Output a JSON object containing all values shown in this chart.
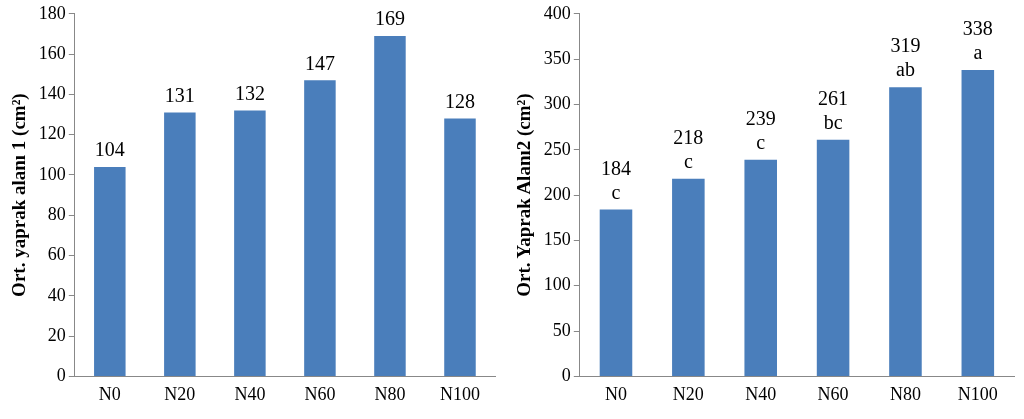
{
  "chart_data": [
    {
      "type": "bar",
      "ylabel": "Ort. yaprak alanı 1 (cm²)",
      "categories": [
        "N0",
        "N20",
        "N40",
        "N60",
        "N80",
        "N100"
      ],
      "values": [
        104,
        131,
        132,
        147,
        169,
        128
      ],
      "color": "#4a7ebb",
      "ylim": [
        0,
        180
      ],
      "yticks": [
        0,
        20,
        40,
        60,
        80,
        100,
        120,
        140,
        160,
        180
      ],
      "grid": false,
      "legend": false,
      "data_labels": true
    },
    {
      "type": "bar",
      "ylabel": "Ort. Yaprak Alanı2 (cm²)",
      "categories": [
        "N0",
        "N20",
        "N40",
        "N60",
        "N80",
        "N100"
      ],
      "values": [
        184,
        218,
        239,
        261,
        319,
        338
      ],
      "color": "#4a7ebb",
      "ylim": [
        0,
        400
      ],
      "yticks": [
        0,
        50,
        100,
        150,
        200,
        250,
        300,
        350,
        400
      ],
      "grid": false,
      "legend": false,
      "data_labels": true,
      "annotations": [
        {
          "text": "c",
          "x": "N0",
          "y": 184
        },
        {
          "text": "c",
          "x": "N20",
          "y": 218
        },
        {
          "text": "c",
          "x": "N40",
          "y": 239
        },
        {
          "text": "bc",
          "x": "N60",
          "y": 261
        },
        {
          "text": "ab",
          "x": "N80",
          "y": 319
        },
        {
          "text": "a",
          "x": "N100",
          "y": 338
        }
      ]
    }
  ]
}
